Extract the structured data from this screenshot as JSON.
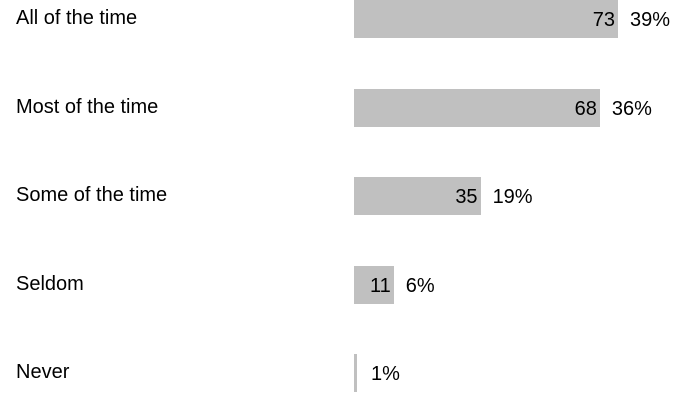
{
  "chart_data": {
    "type": "bar",
    "orientation": "horizontal",
    "categories": [
      "All of the time",
      "Most of the time",
      "Some of the time",
      "Seldom",
      "Never"
    ],
    "values": [
      73,
      68,
      35,
      11,
      null
    ],
    "percent_labels": [
      "39%",
      "36%",
      "19%",
      "6%",
      "1%"
    ],
    "count_labels": [
      "73",
      "68",
      "35",
      "11",
      ""
    ],
    "bar_color": "#c0c0c0",
    "grid": false,
    "legend": "none"
  }
}
